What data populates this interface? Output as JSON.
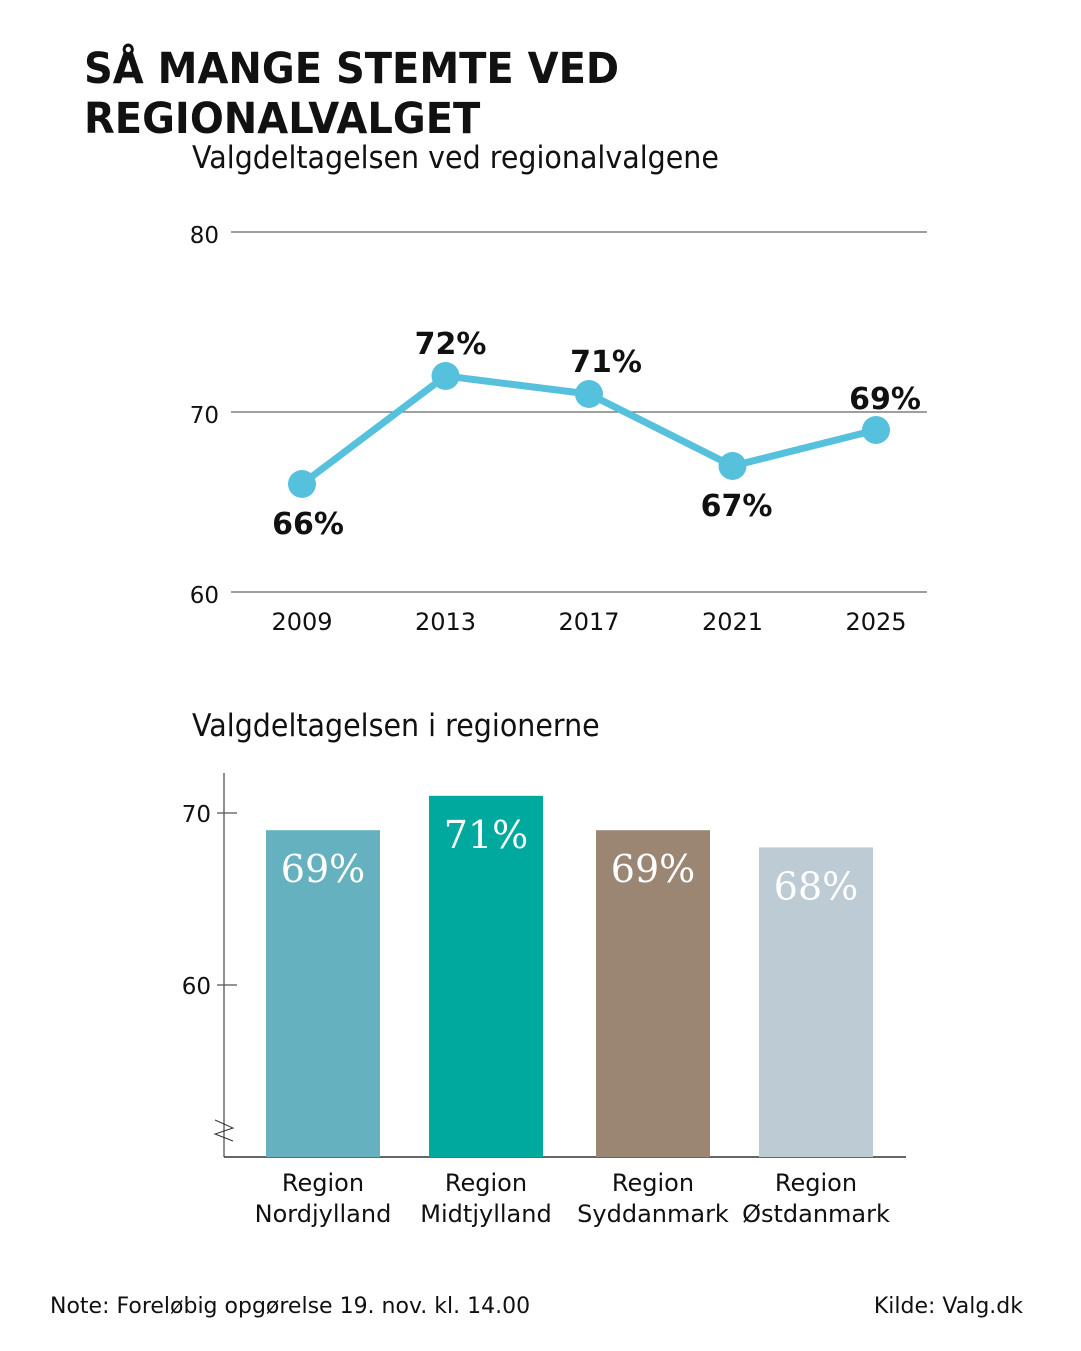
{
  "title": "SÅ MANGE STEMTE VED REGIONALVALGET",
  "note": "Note: Foreløbig opgørelse 19. nov. kl. 14.00",
  "source": "Kilde: Valg.dk",
  "chart_data": [
    {
      "type": "line",
      "title": "Valgdeltagelsen ved regionalvalgene",
      "categories": [
        "2009",
        "2013",
        "2017",
        "2021",
        "2025"
      ],
      "values": [
        66,
        72,
        71,
        67,
        69
      ],
      "labels": [
        "66%",
        "72%",
        "71%",
        "67%",
        "69%"
      ],
      "ylim": [
        60,
        80
      ],
      "yticks": [
        "60",
        "70",
        "80"
      ],
      "grid": true,
      "color": "#55c1dc"
    },
    {
      "type": "bar",
      "title": "Valgdeltagelsen i regionerne",
      "categories": [
        [
          "Region",
          "Nordjylland"
        ],
        [
          "Region",
          "Midtjylland"
        ],
        [
          "Region",
          "Syddanmark"
        ],
        [
          "Region",
          "Østdanmark"
        ]
      ],
      "values": [
        69,
        71,
        69,
        68
      ],
      "labels": [
        "69%",
        "71%",
        "69%",
        "68%"
      ],
      "colors": [
        "#65b1bf",
        "#00a99d",
        "#9a8673",
        "#bccbd4"
      ],
      "ylim": [
        50,
        72.5
      ],
      "yticks": [
        "60",
        "70"
      ],
      "axis_break": true
    }
  ]
}
